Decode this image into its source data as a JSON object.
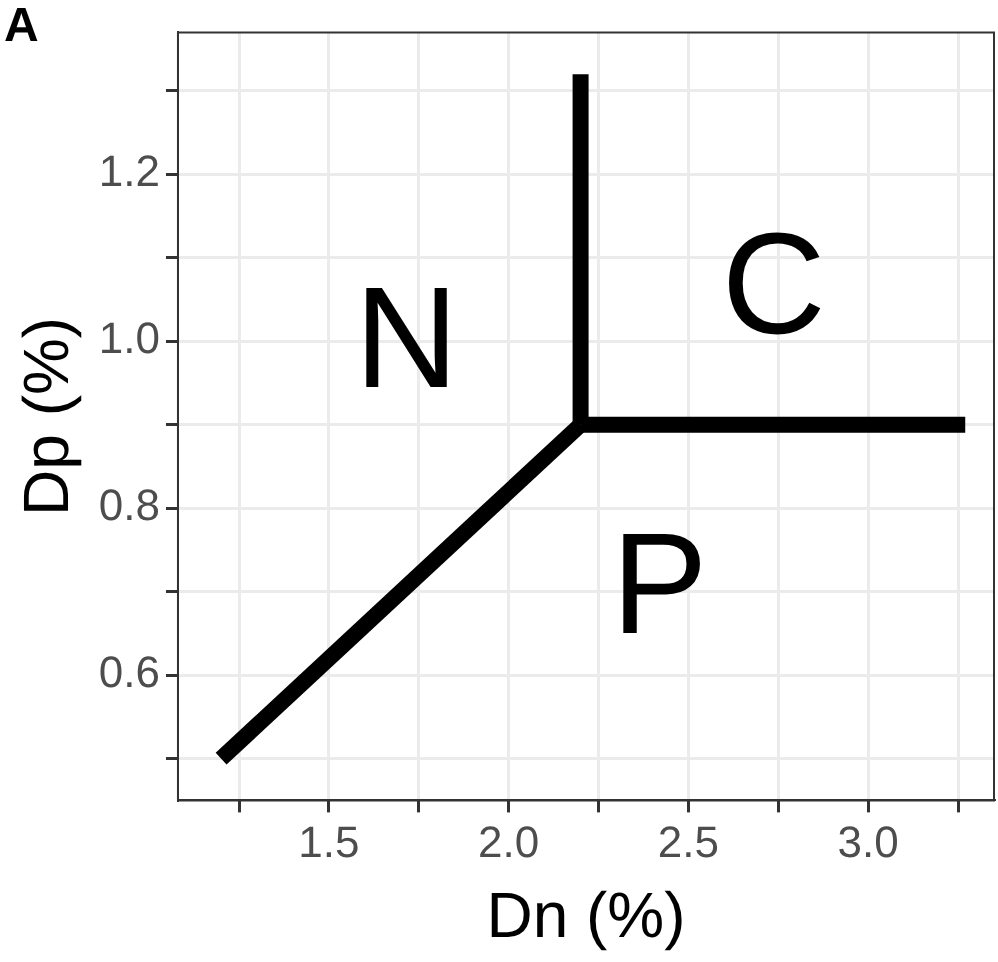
{
  "chart_data": {
    "type": "line",
    "xlabel": "Dn (%)",
    "ylabel": "Dp (%)",
    "xlim": [
      1.08,
      3.35
    ],
    "ylim": [
      0.45,
      1.37
    ],
    "xticks": [
      {
        "value": 1.25,
        "label": null
      },
      {
        "value": 1.5,
        "label": "1.5"
      },
      {
        "value": 1.75,
        "label": null
      },
      {
        "value": 2,
        "label": "2.0"
      },
      {
        "value": 2.25,
        "label": null
      },
      {
        "value": 2.5,
        "label": "2.5"
      },
      {
        "value": 2.75,
        "label": null
      },
      {
        "value": 3,
        "label": "3.0"
      },
      {
        "value": 3.25,
        "label": null
      }
    ],
    "yticks": [
      {
        "value": 0.5,
        "label": null
      },
      {
        "value": 0.6,
        "label": "0.6"
      },
      {
        "value": 0.7,
        "label": null
      },
      {
        "value": 0.8,
        "label": "0.8"
      },
      {
        "value": 0.9,
        "label": null
      },
      {
        "value": 1,
        "label": "1.0"
      },
      {
        "value": 1.1,
        "label": null
      },
      {
        "value": 1.2,
        "label": "1.2"
      },
      {
        "value": 1.3,
        "label": null
      }
    ],
    "grid": true,
    "marker": "none",
    "line_style": "solid",
    "series": [
      {
        "color": "#000000",
        "x": [
          1.2,
          2.2
        ],
        "values": [
          0.5,
          0.9
        ]
      },
      {
        "color": "#000000",
        "x": [
          2.2,
          2.2
        ],
        "values": [
          0.9,
          1.32
        ]
      },
      {
        "color": "#000000",
        "x": [
          2.2,
          3.27
        ],
        "values": [
          0.9,
          0.9
        ]
      }
    ],
    "annotations": [
      "A",
      "N",
      "C",
      "P"
    ]
  }
}
